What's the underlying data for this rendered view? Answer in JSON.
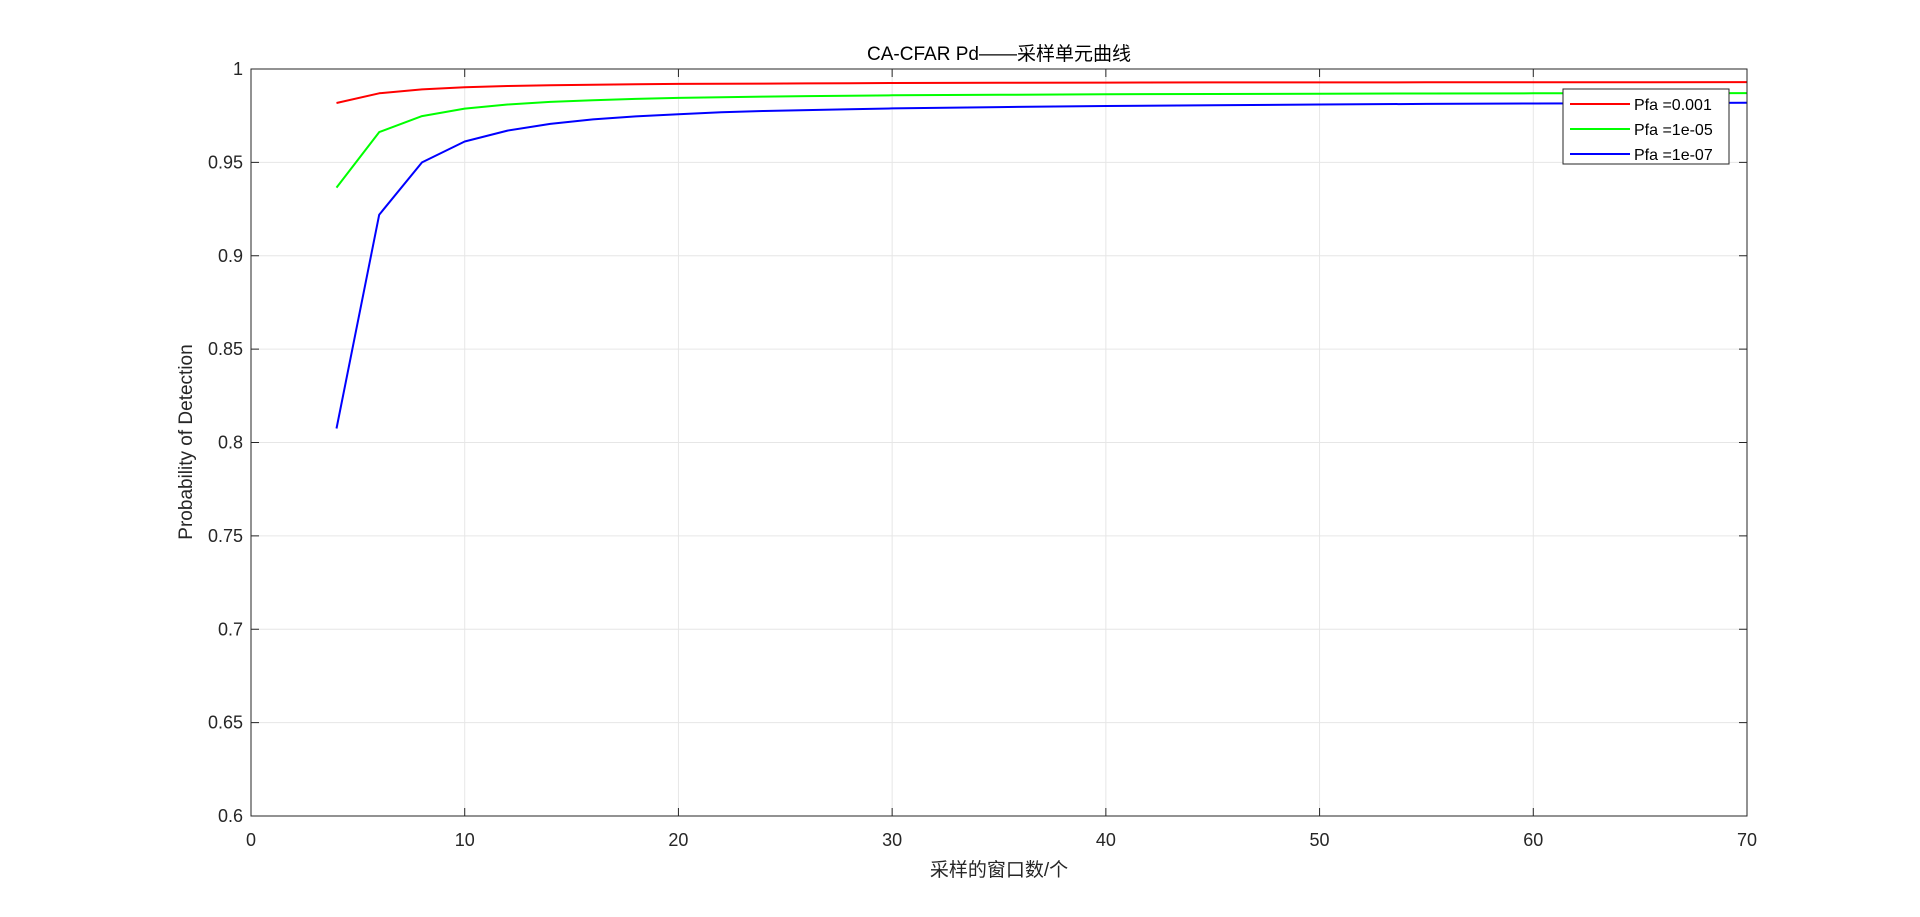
{
  "chart_data": {
    "type": "line",
    "title": "CA-CFAR Pd——采样单元曲线",
    "xlabel": "采样的窗口数/个",
    "ylabel": "Probability of Detection",
    "xlim": [
      0,
      70
    ],
    "ylim": [
      0.6,
      1
    ],
    "xticks": [
      0,
      10,
      20,
      30,
      40,
      50,
      60,
      70
    ],
    "xtick_labels": [
      "0",
      "10",
      "20",
      "30",
      "40",
      "50",
      "60",
      "70"
    ],
    "yticks": [
      0.6,
      0.65,
      0.7,
      0.75,
      0.8,
      0.85,
      0.9,
      0.95,
      1
    ],
    "ytick_labels": [
      "0.6",
      "0.65",
      "0.7",
      "0.75",
      "0.8",
      "0.85",
      "0.9",
      "0.95",
      "1"
    ],
    "grid": true,
    "legend_position": "top-right",
    "x": [
      4,
      6,
      8,
      10,
      12,
      14,
      16,
      18,
      20,
      22,
      24,
      26,
      28,
      30,
      35,
      40,
      45,
      50,
      55,
      60,
      65,
      70
    ],
    "series": [
      {
        "name": "Pfa =0.001",
        "color": "#ff0000",
        "values": [
          0.9818,
          0.987,
          0.9891,
          0.9902,
          0.9909,
          0.9913,
          0.9916,
          0.9918,
          0.992,
          0.9921,
          0.9922,
          0.9923,
          0.9924,
          0.9925,
          0.9926,
          0.9927,
          0.9928,
          0.9928,
          0.9929,
          0.9929,
          0.9929,
          0.993
        ]
      },
      {
        "name": "Pfa =1e-05",
        "color": "#00ff00",
        "values": [
          0.9365,
          0.9662,
          0.9748,
          0.9788,
          0.981,
          0.9824,
          0.9833,
          0.984,
          0.9845,
          0.9849,
          0.9852,
          0.9855,
          0.9857,
          0.9859,
          0.9862,
          0.9865,
          0.9866,
          0.9868,
          0.9869,
          0.987,
          0.987,
          0.9871
        ]
      },
      {
        "name": "Pfa =1e-07",
        "color": "#0000ff",
        "values": [
          0.8075,
          0.922,
          0.95,
          0.9612,
          0.967,
          0.9706,
          0.973,
          0.9746,
          0.9758,
          0.9768,
          0.9775,
          0.978,
          0.9785,
          0.9789,
          0.9796,
          0.9802,
          0.9806,
          0.981,
          0.9813,
          0.9815,
          0.9817,
          0.9819
        ]
      }
    ]
  }
}
